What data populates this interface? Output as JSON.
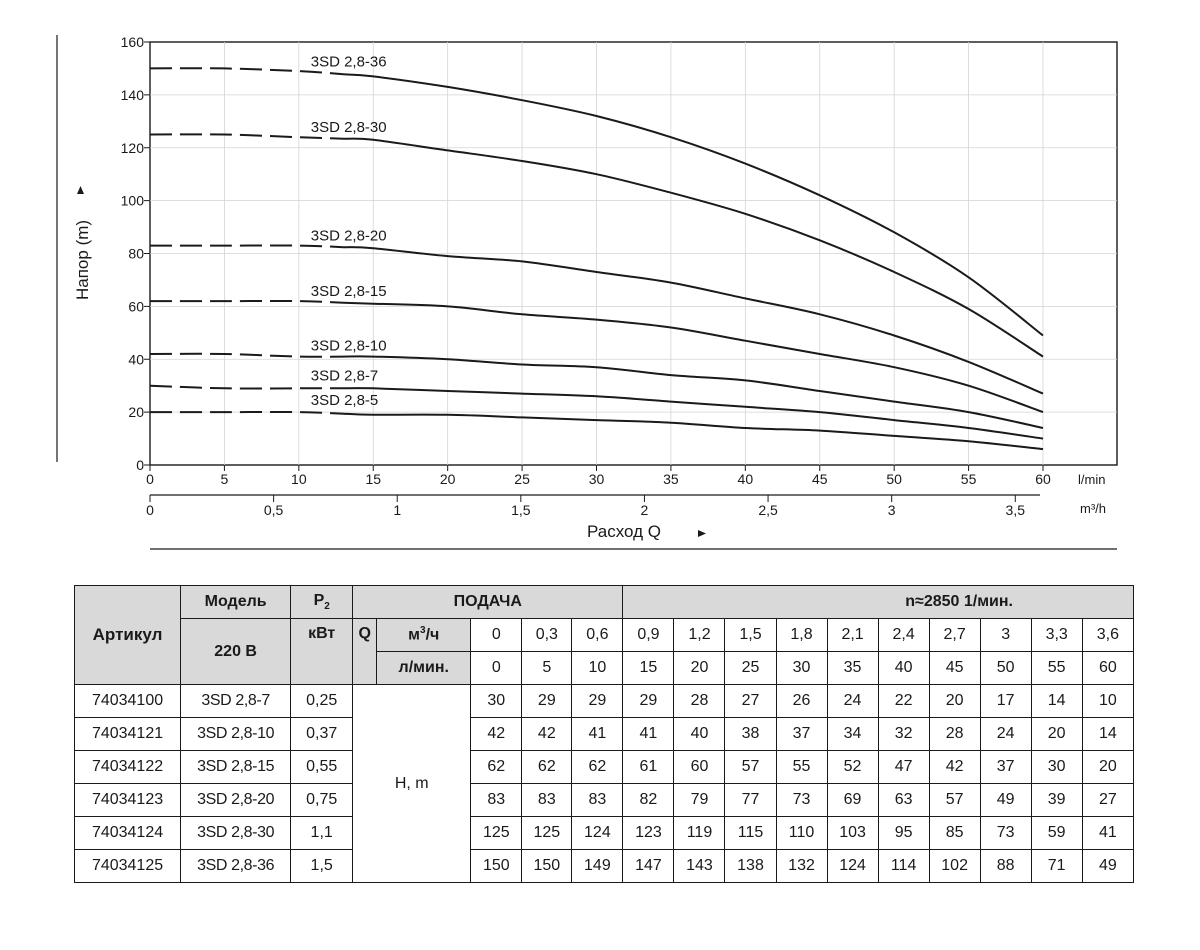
{
  "chart_data": {
    "type": "line",
    "ylabel": "Напор (m)",
    "xlabel": "Расход Q",
    "xunit_primary": "l/min",
    "xunit_secondary": "m³/h",
    "x": [
      0,
      5,
      10,
      15,
      20,
      25,
      30,
      35,
      40,
      45,
      50,
      55,
      60
    ],
    "xlim": [
      0,
      60
    ],
    "ylim": [
      0,
      160
    ],
    "yticks": [
      "0",
      "20",
      "40",
      "60",
      "80",
      "100",
      "120",
      "140",
      "160"
    ],
    "xticks_primary": [
      "0",
      "5",
      "10",
      "15",
      "20",
      "25",
      "30",
      "35",
      "40",
      "45",
      "50",
      "55",
      "60"
    ],
    "xticks_secondary": [
      {
        "value": 0,
        "label": "0"
      },
      {
        "value": 0.5,
        "label": "0,5"
      },
      {
        "value": 1,
        "label": "1"
      },
      {
        "value": 1.5,
        "label": "1,5"
      },
      {
        "value": 2,
        "label": "2"
      },
      {
        "value": 2.5,
        "label": "2,5"
      },
      {
        "value": 3,
        "label": "3"
      },
      {
        "value": 3.5,
        "label": "3,5"
      }
    ],
    "dashed_until_x": 13,
    "grid": true,
    "series": [
      {
        "name": "3SD 2,8-36",
        "values": [
          150,
          150,
          149,
          147,
          143,
          138,
          132,
          124,
          114,
          102,
          88,
          71,
          49
        ]
      },
      {
        "name": "3SD 2,8-30",
        "values": [
          125,
          125,
          124,
          123,
          119,
          115,
          110,
          103,
          95,
          85,
          73,
          59,
          41
        ]
      },
      {
        "name": "3SD 2,8-20",
        "values": [
          83,
          83,
          83,
          82,
          79,
          77,
          73,
          69,
          63,
          57,
          49,
          39,
          27
        ]
      },
      {
        "name": "3SD 2,8-15",
        "values": [
          62,
          62,
          62,
          61,
          60,
          57,
          55,
          52,
          47,
          42,
          37,
          30,
          20
        ]
      },
      {
        "name": "3SD 2,8-10",
        "values": [
          42,
          42,
          41,
          41,
          40,
          38,
          37,
          34,
          32,
          28,
          24,
          20,
          14
        ]
      },
      {
        "name": "3SD 2,8-7",
        "values": [
          30,
          29,
          29,
          29,
          28,
          27,
          26,
          24,
          22,
          20,
          17,
          14,
          10
        ]
      },
      {
        "name": "3SD 2,8-5",
        "values": [
          20,
          20,
          20,
          19,
          19,
          18,
          17,
          16,
          14,
          13,
          11,
          9,
          6
        ]
      }
    ]
  },
  "table": {
    "artikul_header": "Артикул",
    "model_header": "Модель",
    "voltage_header": "220 В",
    "p2_label": "P",
    "p2_sub": "2",
    "kw_label": "кВт",
    "podacha": "ПОДАЧА",
    "speed": "n≈2850 1/мин.",
    "q_label": "Q",
    "m3h_label": "м",
    "m3h_sup": "3",
    "m3h_suffix": "/ч",
    "lmin_label": "л/мин.",
    "h_label": "H, m",
    "m3h_values": [
      "0",
      "0,3",
      "0,6",
      "0,9",
      "1,2",
      "1,5",
      "1,8",
      "2,1",
      "2,4",
      "2,7",
      "3",
      "3,3",
      "3,6"
    ],
    "lmin_values": [
      "0",
      "5",
      "10",
      "15",
      "20",
      "25",
      "30",
      "35",
      "40",
      "45",
      "50",
      "55",
      "60"
    ],
    "rows": [
      {
        "art": "74034100",
        "model": "3SD 2,8-7",
        "kw": "0,25",
        "h": [
          "30",
          "29",
          "29",
          "29",
          "28",
          "27",
          "26",
          "24",
          "22",
          "20",
          "17",
          "14",
          "10"
        ]
      },
      {
        "art": "74034121",
        "model": "3SD 2,8-10",
        "kw": "0,37",
        "h": [
          "42",
          "42",
          "41",
          "41",
          "40",
          "38",
          "37",
          "34",
          "32",
          "28",
          "24",
          "20",
          "14"
        ]
      },
      {
        "art": "74034122",
        "model": "3SD 2,8-15",
        "kw": "0,55",
        "h": [
          "62",
          "62",
          "62",
          "61",
          "60",
          "57",
          "55",
          "52",
          "47",
          "42",
          "37",
          "30",
          "20"
        ]
      },
      {
        "art": "74034123",
        "model": "3SD 2,8-20",
        "kw": "0,75",
        "h": [
          "83",
          "83",
          "83",
          "82",
          "79",
          "77",
          "73",
          "69",
          "63",
          "57",
          "49",
          "39",
          "27"
        ]
      },
      {
        "art": "74034124",
        "model": "3SD 2,8-30",
        "kw": "1,1",
        "h": [
          "125",
          "125",
          "124",
          "123",
          "119",
          "115",
          "110",
          "103",
          "95",
          "85",
          "73",
          "59",
          "41"
        ]
      },
      {
        "art": "74034125",
        "model": "3SD 2,8-36",
        "kw": "1,5",
        "h": [
          "150",
          "150",
          "149",
          "147",
          "143",
          "138",
          "132",
          "124",
          "114",
          "102",
          "88",
          "71",
          "49"
        ]
      }
    ]
  }
}
